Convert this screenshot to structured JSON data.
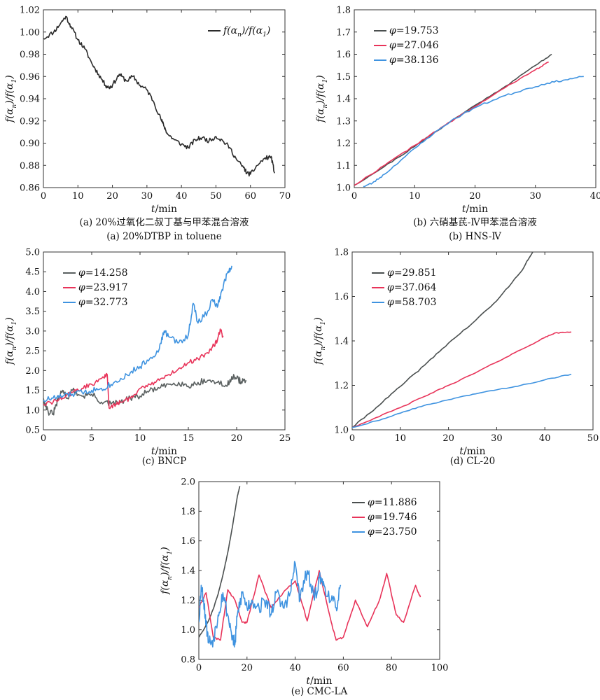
{
  "figure": {
    "panels": [
      {
        "id": "a",
        "caption_cn": "(a) 20%过氧化二叔丁基与甲苯混合溶液",
        "caption_en": "(a) 20%DTBP in toluene",
        "ylabel": "f(αn)/f(α1)",
        "xlabel": "t/min"
      },
      {
        "id": "b",
        "caption_cn": "(b) 六硝基芪-Ⅳ甲苯混合溶液",
        "caption_en": "(b) HNS-Ⅳ",
        "ylabel": "f(αn)/f(α1)",
        "xlabel": "t/min"
      },
      {
        "id": "c",
        "caption_cn": "",
        "caption_en": "(c) BNCP",
        "ylabel": "f(αn)/f(α1)",
        "xlabel": "t/min"
      },
      {
        "id": "d",
        "caption_cn": "",
        "caption_en": "(d) CL-20",
        "ylabel": "f(αn)/f(α1)",
        "xlabel": "t/min"
      },
      {
        "id": "e",
        "caption_cn": "",
        "caption_en": "(e) CMC-LA",
        "ylabel": "f(αn)/f(α1)",
        "xlabel": "t/min"
      }
    ]
  },
  "chart_data": [
    {
      "type": "line",
      "panel": "a",
      "xlabel": "t/min",
      "ylabel": "f(αn)/f(α1)",
      "xlim": [
        0,
        70
      ],
      "ylim": [
        0.86,
        1.02
      ],
      "xticks": [
        0,
        10,
        20,
        30,
        40,
        50,
        60,
        70
      ],
      "yticks": [
        0.86,
        0.88,
        0.9,
        0.92,
        0.94,
        0.96,
        0.98,
        1.0,
        1.02
      ],
      "ytick_decimals": 2,
      "legend_position": "top-right",
      "grid": false,
      "series": [
        {
          "name": "f(αn)/f(α1)",
          "color": "#2b2b2b",
          "noise": 0.002,
          "seed": 11,
          "x": [
            0,
            3,
            5,
            6.5,
            8,
            10,
            12,
            14,
            16,
            18,
            19,
            20,
            22,
            24,
            26,
            28,
            30,
            32,
            34,
            35,
            36,
            38,
            40,
            42,
            44,
            46,
            48,
            50,
            52,
            54,
            56,
            58,
            59,
            60,
            62,
            64,
            66,
            67
          ],
          "y": [
            0.994,
            1.0,
            1.008,
            1.014,
            1.005,
            0.993,
            0.985,
            0.972,
            0.962,
            0.952,
            0.95,
            0.952,
            0.962,
            0.956,
            0.96,
            0.952,
            0.948,
            0.937,
            0.922,
            0.915,
            0.908,
            0.903,
            0.899,
            0.896,
            0.903,
            0.905,
            0.902,
            0.906,
            0.902,
            0.896,
            0.885,
            0.878,
            0.873,
            0.872,
            0.88,
            0.886,
            0.888,
            0.873
          ]
        }
      ]
    },
    {
      "type": "line",
      "panel": "b",
      "xlabel": "t/min",
      "ylabel": "f(αn)/f(α1)",
      "xlim": [
        0,
        40
      ],
      "ylim": [
        1.0,
        1.8
      ],
      "xticks": [
        0,
        10,
        20,
        30,
        40
      ],
      "yticks": [
        1.0,
        1.1,
        1.2,
        1.3,
        1.4,
        1.5,
        1.6,
        1.7,
        1.8
      ],
      "ytick_decimals": 1,
      "legend_position": "top-left",
      "grid": false,
      "series": [
        {
          "name": "φ=19.753",
          "color": "#4a4f4f",
          "noise": 0.003,
          "seed": 21,
          "x": [
            0,
            5,
            10,
            15,
            20,
            25,
            30,
            32.7
          ],
          "y": [
            1.01,
            1.095,
            1.185,
            1.28,
            1.37,
            1.455,
            1.55,
            1.6
          ]
        },
        {
          "name": "φ=27.046",
          "color": "#e8345a",
          "noise": 0.003,
          "seed": 22,
          "x": [
            0,
            5,
            10,
            15,
            20,
            25,
            30,
            32.2
          ],
          "y": [
            1.01,
            1.1,
            1.19,
            1.28,
            1.365,
            1.45,
            1.53,
            1.565
          ]
        },
        {
          "name": "φ=38.136",
          "color": "#3f93e0",
          "noise": 0.004,
          "seed": 23,
          "x": [
            1.5,
            3,
            5,
            8,
            12,
            16,
            20,
            24,
            28,
            32,
            35,
            38
          ],
          "y": [
            1.005,
            1.02,
            1.06,
            1.13,
            1.22,
            1.3,
            1.36,
            1.405,
            1.44,
            1.47,
            1.485,
            1.5
          ]
        }
      ]
    },
    {
      "type": "line",
      "panel": "c",
      "xlabel": "t/min",
      "ylabel": "f(αn)/f(α1)",
      "xlim": [
        0,
        25
      ],
      "ylim": [
        0.5,
        5.0
      ],
      "xticks": [
        0,
        5,
        10,
        15,
        20,
        25
      ],
      "yticks": [
        0.5,
        1.0,
        1.5,
        2.0,
        2.5,
        3.0,
        3.5,
        4.0,
        4.5,
        5.0
      ],
      "ytick_decimals": 1,
      "legend_position": "top-left",
      "grid": false,
      "series": [
        {
          "name": "φ=14.258",
          "color": "#5a6060",
          "noise": 0.08,
          "seed": 31,
          "x": [
            0,
            0.5,
            1,
            1.5,
            2,
            2.5,
            3,
            4,
            5,
            6,
            7,
            8,
            9,
            10,
            11,
            12,
            13,
            14,
            15,
            16,
            17,
            18,
            19,
            19.5,
            20,
            20.5,
            21
          ],
          "y": [
            1.3,
            0.95,
            0.9,
            1.25,
            1.5,
            1.3,
            1.5,
            1.35,
            1.4,
            1.2,
            1.15,
            1.2,
            1.3,
            1.35,
            1.5,
            1.55,
            1.65,
            1.7,
            1.6,
            1.7,
            1.75,
            1.7,
            1.6,
            1.85,
            1.8,
            1.72,
            1.75
          ]
        },
        {
          "name": "φ=23.917",
          "color": "#e8345a",
          "noise": 0.06,
          "seed": 32,
          "x": [
            0,
            1,
            2,
            3,
            4,
            5,
            6,
            6.6,
            6.8,
            7.5,
            8,
            9,
            10,
            11,
            12,
            13,
            14,
            15,
            16,
            17,
            17.5,
            18,
            18.3,
            18.6
          ],
          "y": [
            1.15,
            1.2,
            1.3,
            1.45,
            1.55,
            1.65,
            1.8,
            1.9,
            1.05,
            1.15,
            1.2,
            1.3,
            1.55,
            1.65,
            1.75,
            1.9,
            2.05,
            2.2,
            2.3,
            2.45,
            2.6,
            2.75,
            3.05,
            2.85
          ]
        },
        {
          "name": "φ=32.773",
          "color": "#3f93e0",
          "noise": 0.08,
          "seed": 33,
          "x": [
            0,
            1,
            2,
            3,
            4,
            5,
            6,
            7,
            8,
            9,
            10,
            11,
            12,
            12.5,
            13,
            14,
            15,
            15.5,
            16,
            17,
            17.5,
            18,
            18.5,
            19,
            19.5
          ],
          "y": [
            1.25,
            1.3,
            1.35,
            1.4,
            1.45,
            1.5,
            1.55,
            1.65,
            1.8,
            1.95,
            2.1,
            2.3,
            2.55,
            3.0,
            2.85,
            2.7,
            2.9,
            3.7,
            3.2,
            3.5,
            3.8,
            3.6,
            4.05,
            4.45,
            4.65
          ]
        }
      ]
    },
    {
      "type": "line",
      "panel": "d",
      "xlabel": "t/min",
      "ylabel": "f(αn)/f(α1)",
      "xlim": [
        0,
        50
      ],
      "ylim": [
        1.0,
        1.8
      ],
      "xticks": [
        0,
        10,
        20,
        30,
        40,
        50
      ],
      "yticks": [
        1.0,
        1.2,
        1.4,
        1.6,
        1.8
      ],
      "ytick_decimals": 1,
      "legend_position": "top-left",
      "grid": false,
      "series": [
        {
          "name": "φ=29.851",
          "color": "#4a4f4f",
          "noise": 0.003,
          "seed": 41,
          "x": [
            0,
            5,
            10,
            15,
            20,
            25,
            30,
            35,
            37.5
          ],
          "y": [
            1.01,
            1.1,
            1.195,
            1.29,
            1.39,
            1.48,
            1.58,
            1.71,
            1.8
          ]
        },
        {
          "name": "φ=37.064",
          "color": "#e8345a",
          "noise": 0.002,
          "seed": 42,
          "x": [
            0,
            5,
            10,
            15,
            20,
            25,
            30,
            35,
            40,
            42,
            45.5
          ],
          "y": [
            1.01,
            1.055,
            1.1,
            1.15,
            1.2,
            1.25,
            1.305,
            1.36,
            1.415,
            1.435,
            1.44
          ]
        },
        {
          "name": "φ=58.703",
          "color": "#3f93e0",
          "noise": 0.002,
          "seed": 43,
          "x": [
            0,
            5,
            10,
            15,
            20,
            25,
            30,
            35,
            40,
            45.5
          ],
          "y": [
            1.01,
            1.04,
            1.075,
            1.11,
            1.135,
            1.16,
            1.18,
            1.2,
            1.225,
            1.25
          ]
        }
      ]
    },
    {
      "type": "line",
      "panel": "e",
      "xlabel": "t/min",
      "ylabel": "f(αn)/f(α1)",
      "xlim": [
        0,
        100
      ],
      "ylim": [
        0.8,
        2.0
      ],
      "xticks": [
        0,
        20,
        40,
        60,
        80,
        100
      ],
      "yticks": [
        0.8,
        1.0,
        1.2,
        1.4,
        1.6,
        1.8,
        2.0
      ],
      "ytick_decimals": 1,
      "legend_position": "top-right",
      "grid": false,
      "series": [
        {
          "name": "φ=11.886",
          "color": "#4a4f4f",
          "noise": 0.003,
          "seed": 51,
          "x": [
            0,
            2,
            4,
            6,
            8,
            10,
            12,
            14,
            16,
            17
          ],
          "y": [
            0.95,
            1.0,
            1.06,
            1.14,
            1.24,
            1.37,
            1.52,
            1.7,
            1.9,
            1.97
          ]
        },
        {
          "name": "φ=19.746",
          "color": "#e8345a",
          "noise": 0.006,
          "seed": 52,
          "x": [
            0,
            3,
            6,
            9,
            12,
            15,
            18,
            20,
            25,
            30,
            35,
            40,
            45,
            50,
            55,
            57,
            60,
            65,
            70,
            75,
            78,
            82,
            85,
            90,
            92
          ],
          "y": [
            1.15,
            1.25,
            0.95,
            0.93,
            1.27,
            1.2,
            1.05,
            1.05,
            1.37,
            1.15,
            1.25,
            1.33,
            1.06,
            1.4,
            1.05,
            0.93,
            0.95,
            1.2,
            1.02,
            1.2,
            1.38,
            1.1,
            1.05,
            1.3,
            1.22
          ]
        },
        {
          "name": "φ=23.750",
          "color": "#3f93e0",
          "noise": 0.05,
          "seed": 53,
          "x": [
            0,
            1,
            2,
            3,
            4,
            6,
            8,
            10,
            12,
            14,
            15,
            16,
            18,
            20,
            22,
            25,
            28,
            30,
            32,
            35,
            38,
            40,
            42,
            45,
            48,
            50,
            52,
            55,
            57,
            59
          ],
          "y": [
            1.05,
            1.3,
            1.2,
            1.05,
            0.92,
            0.93,
            1.1,
            1.25,
            1.1,
            0.95,
            0.9,
            1.1,
            1.25,
            1.15,
            1.2,
            1.15,
            1.2,
            1.1,
            1.25,
            1.15,
            1.25,
            1.45,
            1.2,
            1.4,
            1.2,
            1.35,
            1.3,
            1.2,
            1.15,
            1.3
          ]
        }
      ]
    }
  ]
}
